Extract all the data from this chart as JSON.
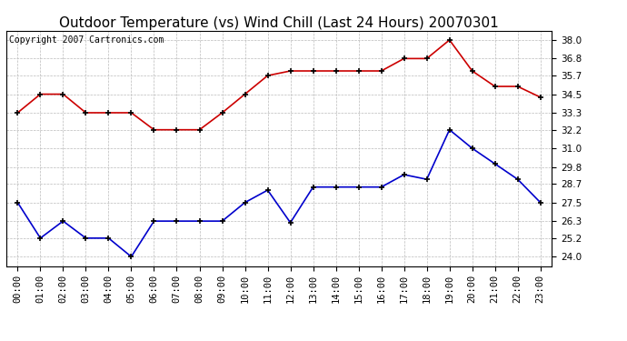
{
  "title": "Outdoor Temperature (vs) Wind Chill (Last 24 Hours) 20070301",
  "copyright": "Copyright 2007 Cartronics.com",
  "x_labels": [
    "00:00",
    "01:00",
    "02:00",
    "03:00",
    "04:00",
    "05:00",
    "06:00",
    "07:00",
    "08:00",
    "09:00",
    "10:00",
    "11:00",
    "12:00",
    "13:00",
    "14:00",
    "15:00",
    "16:00",
    "17:00",
    "18:00",
    "19:00",
    "20:00",
    "21:00",
    "22:00",
    "23:00"
  ],
  "temp_red": [
    33.3,
    34.5,
    34.5,
    33.3,
    33.3,
    33.3,
    32.2,
    32.2,
    32.2,
    33.3,
    34.5,
    35.7,
    36.0,
    36.0,
    36.0,
    36.0,
    36.0,
    36.8,
    36.8,
    38.0,
    36.0,
    35.0,
    35.0,
    34.3
  ],
  "wind_blue": [
    27.5,
    25.2,
    26.3,
    25.2,
    25.2,
    24.0,
    26.3,
    26.3,
    26.3,
    26.3,
    27.5,
    28.3,
    26.2,
    28.5,
    28.5,
    28.5,
    28.5,
    29.3,
    29.0,
    32.2,
    31.0,
    30.0,
    29.0,
    27.5
  ],
  "y_ticks": [
    24.0,
    25.2,
    26.3,
    27.5,
    28.7,
    29.8,
    31.0,
    32.2,
    33.3,
    34.5,
    35.7,
    36.8,
    38.0
  ],
  "ylim": [
    23.4,
    38.6
  ],
  "red_color": "#cc0000",
  "blue_color": "#0000cc",
  "bg_color": "#ffffff",
  "grid_color": "#bbbbbb",
  "title_fontsize": 11,
  "tick_fontsize": 7.5,
  "copyright_fontsize": 7
}
